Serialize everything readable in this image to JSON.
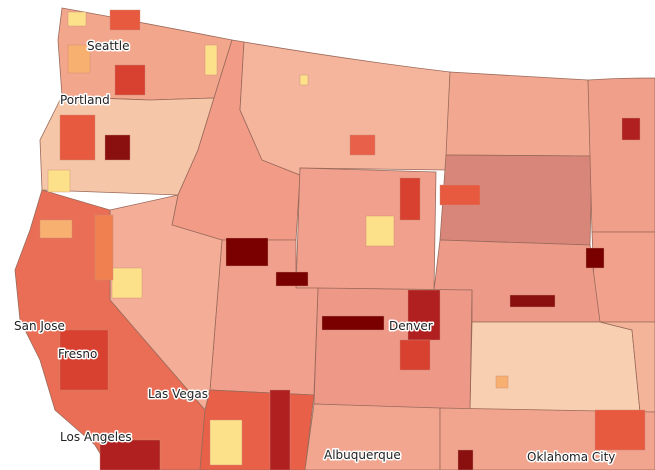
{
  "map": {
    "cities": [
      {
        "label": "Seattle"
      },
      {
        "label": "Portland"
      },
      {
        "label": "San Jose"
      },
      {
        "label": "Fresno"
      },
      {
        "label": "Las Vegas"
      },
      {
        "label": "Los Angeles"
      },
      {
        "label": "Denver"
      },
      {
        "label": "Albuquerque"
      },
      {
        "label": "Oklahoma City"
      }
    ]
  }
}
